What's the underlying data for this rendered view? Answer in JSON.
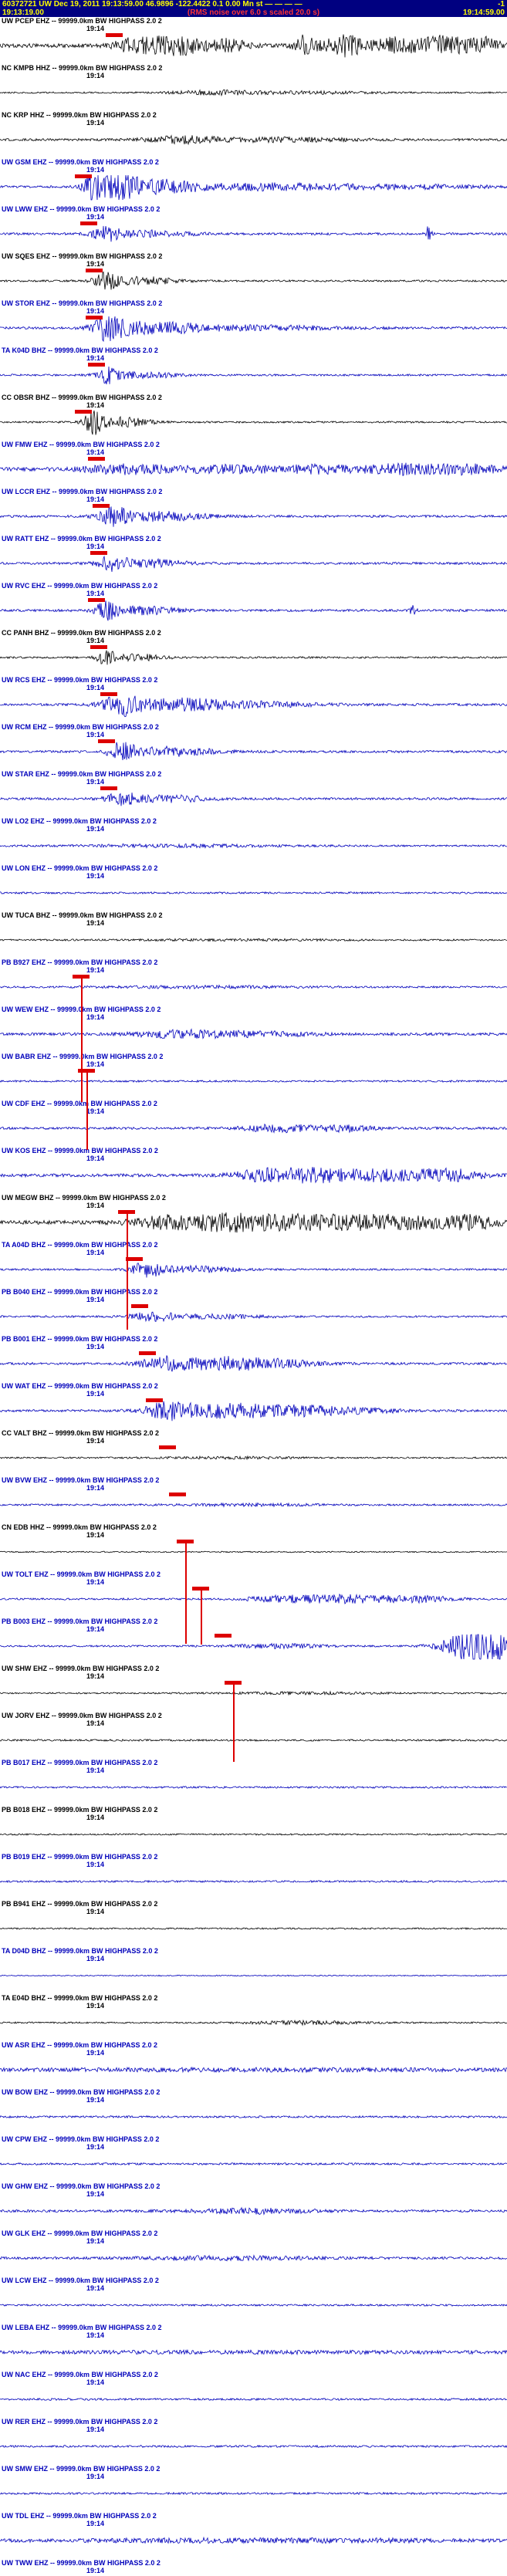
{
  "header": {
    "event_line": "60372721 UW Dec 19, 2011 19:13:59.00   46.9896 -122.4422   0.1 0.00 Mn st — — — —",
    "flag": "-1",
    "window_start": "19:13:19.00",
    "scale_note": "(RMS noise over 6.0 s scaled 20.0 s)",
    "window_end": "19:14:59.00"
  },
  "tick_label": "19:14",
  "palette": {
    "black": "#000000",
    "blue": "#0000bb",
    "red": "#dd0000",
    "header_bg": "#000080",
    "header_fg": "#ffff00"
  },
  "traces": [
    {
      "label": "UW PCEP EHZ -- 99999.0km BW HIGHPASS  2.0 2",
      "color": "black",
      "base": 2.5,
      "bursts": [
        [
          0.27,
          0.03,
          9
        ],
        [
          0.35,
          0.04,
          11
        ],
        [
          0.45,
          0.03,
          7
        ],
        [
          0.6,
          0.015,
          12
        ],
        [
          0.68,
          0.03,
          13
        ],
        [
          0.78,
          0.03,
          9
        ],
        [
          0.88,
          0.04,
          12
        ],
        [
          0.96,
          0.02,
          8
        ]
      ],
      "pick": 0.225
    },
    {
      "label": "NC KMPB HHZ -- 99999.0km BW HIGHPASS  2.0 2",
      "color": "black",
      "base": 1.0,
      "bursts": [
        [
          0.42,
          0.06,
          2.5
        ],
        [
          0.6,
          0.1,
          1.5
        ]
      ],
      "pick": null
    },
    {
      "label": "NC KRP HHZ -- 99999.0km BW HIGHPASS  2.0 2",
      "color": "black",
      "base": 1.5,
      "bursts": [
        [
          0.36,
          0.05,
          4
        ],
        [
          0.55,
          0.1,
          2.5
        ]
      ],
      "pick": null
    },
    {
      "label": "UW GSM EHZ -- 99999.0km BW HIGHPASS  2.0 2",
      "color": "blue",
      "base": 1.5,
      "bursts": [
        [
          0.185,
          0.012,
          22
        ],
        [
          0.23,
          0.03,
          16
        ],
        [
          0.32,
          0.05,
          8
        ],
        [
          0.5,
          0.1,
          3.5
        ],
        [
          0.75,
          0.15,
          2.5
        ]
      ],
      "pick": 0.165
    },
    {
      "label": "UW LWW EHZ -- 99999.0km BW HIGHPASS  2.0 2",
      "color": "blue",
      "base": 1.5,
      "bursts": [
        [
          0.21,
          0.02,
          8
        ],
        [
          0.3,
          0.06,
          4
        ],
        [
          0.845,
          0.004,
          9
        ]
      ],
      "pick": 0.175
    },
    {
      "label": "UW SQES EHZ -- 99999.0km BW HIGHPASS  2.0 2",
      "color": "black",
      "base": 1.2,
      "bursts": [
        [
          0.21,
          0.015,
          12
        ],
        [
          0.28,
          0.05,
          5
        ]
      ],
      "pick": 0.185
    },
    {
      "label": "UW STOR EHZ -- 99999.0km BW HIGHPASS  2.0 2",
      "color": "blue",
      "base": 1.5,
      "bursts": [
        [
          0.215,
          0.02,
          17
        ],
        [
          0.3,
          0.06,
          8
        ],
        [
          0.5,
          0.12,
          3
        ]
      ],
      "pick": 0.185
    },
    {
      "label": "TA K04D BHZ -- 99999.0km BW HIGHPASS  2.0 2",
      "color": "blue",
      "base": 1.2,
      "bursts": [
        [
          0.215,
          0.015,
          10
        ],
        [
          0.28,
          0.05,
          4
        ]
      ],
      "pick": 0.19
    },
    {
      "label": "CC OBSR BHZ -- 99999.0km BW HIGHPASS  2.0 2",
      "color": "black",
      "base": 1.2,
      "bursts": [
        [
          0.185,
          0.012,
          15
        ],
        [
          0.24,
          0.04,
          6
        ]
      ],
      "pick": 0.165
    },
    {
      "label": "UW FMW EHZ -- 99999.0km BW HIGHPASS  2.0 2",
      "color": "blue",
      "base": 2.5,
      "bursts": [
        [
          0.25,
          0.06,
          5
        ],
        [
          0.45,
          0.08,
          4
        ],
        [
          0.63,
          0.05,
          4
        ],
        [
          0.8,
          0.06,
          6
        ],
        [
          0.93,
          0.04,
          5
        ]
      ],
      "pick": 0.19
    },
    {
      "label": "UW LCCR EHZ -- 99999.0km BW HIGHPASS  2.0 2",
      "color": "blue",
      "base": 1.5,
      "bursts": [
        [
          0.225,
          0.02,
          11
        ],
        [
          0.32,
          0.06,
          6
        ]
      ],
      "pick": 0.2
    },
    {
      "label": "UW RATT EHZ -- 99999.0km BW HIGHPASS  2.0 2",
      "color": "blue",
      "base": 1.5,
      "bursts": [
        [
          0.22,
          0.02,
          9
        ],
        [
          0.3,
          0.05,
          5
        ]
      ],
      "pick": 0.195
    },
    {
      "label": "UW RVC EHZ -- 99999.0km BW HIGHPASS  2.0 2",
      "color": "blue",
      "base": 1.5,
      "bursts": [
        [
          0.21,
          0.015,
          11
        ],
        [
          0.28,
          0.05,
          5
        ],
        [
          0.815,
          0.004,
          8
        ]
      ],
      "pick": 0.19
    },
    {
      "label": "CC PANH BHZ -- 99999.0km BW HIGHPASS  2.0 2",
      "color": "black",
      "base": 1.2,
      "bursts": [
        [
          0.21,
          0.012,
          10
        ],
        [
          0.27,
          0.04,
          4
        ]
      ],
      "pick": 0.195
    },
    {
      "label": "UW RCS EHZ -- 99999.0km BW HIGHPASS  2.0 2",
      "color": "blue",
      "base": 1.5,
      "bursts": [
        [
          0.24,
          0.025,
          13
        ],
        [
          0.35,
          0.07,
          7
        ],
        [
          0.5,
          0.1,
          3
        ]
      ],
      "pick": 0.215
    },
    {
      "label": "UW RCM EHZ -- 99999.0km BW HIGHPASS  2.0 2",
      "color": "blue",
      "base": 1.5,
      "bursts": [
        [
          0.24,
          0.02,
          11
        ],
        [
          0.34,
          0.06,
          6
        ]
      ],
      "pick": 0.21
    },
    {
      "label": "UW STAR EHZ -- 99999.0km BW HIGHPASS  2.0 2",
      "color": "blue",
      "base": 1.5,
      "bursts": [
        [
          0.24,
          0.02,
          8
        ],
        [
          0.33,
          0.06,
          4
        ]
      ],
      "pick": 0.215
    },
    {
      "label": "UW LO2 EHZ -- 99999.0km BW HIGHPASS  2.0 2",
      "color": "blue",
      "base": 1.2,
      "bursts": [
        [
          0.35,
          0.15,
          1.5
        ]
      ],
      "pick": null
    },
    {
      "label": "UW LON EHZ -- 99999.0km BW HIGHPASS  2.0 2",
      "color": "blue",
      "base": 1.2,
      "bursts": [],
      "pick": null
    },
    {
      "label": "UW TUCA BHZ -- 99999.0km BW HIGHPASS  2.0 2",
      "color": "black",
      "base": 1.0,
      "bursts": [
        [
          0.5,
          0.2,
          0.8
        ]
      ],
      "pick": null
    },
    {
      "label": "PB B927 EHZ -- 99999.0km BW HIGHPASS  2.0 2",
      "color": "blue",
      "base": 1.2,
      "bursts": [
        [
          0.4,
          0.15,
          1.2
        ]
      ],
      "pick": 0.16,
      "line_h": 160
    },
    {
      "label": "UW WEW EHZ -- 99999.0km BW HIGHPASS  2.0 2",
      "color": "blue",
      "base": 1.8,
      "bursts": [
        [
          0.35,
          0.06,
          4
        ],
        [
          0.5,
          0.08,
          3
        ]
      ],
      "pick": null
    },
    {
      "label": "UW BABR EHZ -- 99999.0km BW HIGHPASS  2.0 2",
      "color": "blue",
      "base": 1.2,
      "bursts": [],
      "pick": 0.17,
      "line_h": 100
    },
    {
      "label": "UW CDF EHZ -- 99999.0km BW HIGHPASS  2.0 2",
      "color": "blue",
      "base": 1.5,
      "bursts": [
        [
          0.55,
          0.05,
          4.5
        ],
        [
          0.68,
          0.04,
          4
        ]
      ],
      "pick": null
    },
    {
      "label": "UW KOS EHZ -- 99999.0km BW HIGHPASS  2.0 2",
      "color": "blue",
      "base": 2.0,
      "bursts": [
        [
          0.52,
          0.04,
          7
        ],
        [
          0.62,
          0.05,
          9
        ],
        [
          0.75,
          0.05,
          7
        ],
        [
          0.88,
          0.05,
          8
        ]
      ],
      "pick": null
    },
    {
      "label": "UW MEGW BHZ -- 99999.0km BW HIGHPASS  2.0 2",
      "color": "black",
      "base": 2.5,
      "bursts": [
        [
          0.33,
          0.05,
          7
        ],
        [
          0.45,
          0.06,
          9
        ],
        [
          0.6,
          0.08,
          8
        ],
        [
          0.78,
          0.08,
          8
        ],
        [
          0.93,
          0.04,
          7
        ]
      ],
      "pick": 0.25,
      "line_h": 150
    },
    {
      "label": "TA A04D BHZ -- 99999.0km BW HIGHPASS  2.0 2",
      "color": "blue",
      "base": 1.2,
      "bursts": [
        [
          0.29,
          0.02,
          10
        ],
        [
          0.38,
          0.06,
          4
        ]
      ],
      "pick": 0.265
    },
    {
      "label": "PB B040 EHZ -- 99999.0km BW HIGHPASS  2.0 2",
      "color": "blue",
      "base": 1.2,
      "bursts": [
        [
          0.3,
          0.03,
          5
        ],
        [
          0.42,
          0.08,
          2.5
        ]
      ],
      "pick": 0.275
    },
    {
      "label": "PB B001 EHZ -- 99999.0km BW HIGHPASS  2.0 2",
      "color": "blue",
      "base": 1.5,
      "bursts": [
        [
          0.32,
          0.03,
          7
        ],
        [
          0.43,
          0.07,
          8
        ],
        [
          0.55,
          0.06,
          4
        ]
      ],
      "pick": 0.29
    },
    {
      "label": "UW WAT EHZ -- 99999.0km BW HIGHPASS  2.0 2",
      "color": "blue",
      "base": 1.5,
      "bursts": [
        [
          0.33,
          0.03,
          9
        ],
        [
          0.45,
          0.08,
          9
        ],
        [
          0.6,
          0.06,
          5
        ],
        [
          0.72,
          0.05,
          3
        ]
      ],
      "pick": 0.305
    },
    {
      "label": "CC VALT BHZ -- 99999.0km BW HIGHPASS  2.0 2",
      "color": "black",
      "base": 1.0,
      "bursts": [
        [
          0.45,
          0.1,
          1.2
        ]
      ],
      "pick": 0.33
    },
    {
      "label": "UW BVW EHZ -- 99999.0km BW HIGHPASS  2.0 2",
      "color": "blue",
      "base": 1.2,
      "bursts": [
        [
          0.5,
          0.1,
          1.2
        ]
      ],
      "pick": 0.35
    },
    {
      "label": "CN EDB HHZ -- 99999.0km BW HIGHPASS  2.0 2",
      "color": "black",
      "base": 0.8,
      "bursts": [],
      "pick": 0.365,
      "line_h": 130
    },
    {
      "label": "UW TOLT EHZ -- 99999.0km BW HIGHPASS  2.0 2",
      "color": "blue",
      "base": 1.2,
      "bursts": [
        [
          0.55,
          0.05,
          3
        ],
        [
          0.68,
          0.07,
          5
        ],
        [
          0.83,
          0.05,
          3.5
        ]
      ],
      "pick": 0.395,
      "line_h": 70
    },
    {
      "label": "PB B003 EHZ -- 99999.0km BW HIGHPASS  2.0 2",
      "color": "blue",
      "base": 1.2,
      "bursts": [
        [
          0.55,
          0.06,
          2.5
        ],
        [
          0.95,
          0.045,
          28
        ]
      ],
      "pick": 0.44
    },
    {
      "label": "UW SHW EHZ -- 99999.0km BW HIGHPASS  2.0 2",
      "color": "black",
      "base": 1.0,
      "bursts": [
        [
          0.6,
          0.1,
          1.2
        ]
      ],
      "pick": 0.46,
      "line_h": 100
    },
    {
      "label": "UW JORV EHZ -- 99999.0km BW HIGHPASS  2.0 2",
      "color": "black",
      "base": 1.2,
      "bursts": [],
      "pick": null
    },
    {
      "label": "PB B017 EHZ -- 99999.0km BW HIGHPASS  2.0 2",
      "color": "blue",
      "base": 1.2,
      "bursts": [],
      "pick": null
    },
    {
      "label": "PB B018 EHZ -- 99999.0km BW HIGHPASS  2.0 2",
      "color": "black",
      "base": 1.0,
      "bursts": [],
      "pick": null
    },
    {
      "label": "PB B019 EHZ -- 99999.0km BW HIGHPASS  2.0 2",
      "color": "blue",
      "base": 1.2,
      "bursts": [],
      "pick": null
    },
    {
      "label": "PB B941 EHZ -- 99999.0km BW HIGHPASS  2.0 2",
      "color": "black",
      "base": 1.0,
      "bursts": [],
      "pick": null
    },
    {
      "label": "TA D04D BHZ -- 99999.0km BW HIGHPASS  2.0 2",
      "color": "blue",
      "base": 0.7,
      "bursts": [],
      "pick": null
    },
    {
      "label": "TA E04D BHZ -- 99999.0km BW HIGHPASS  2.0 2",
      "color": "black",
      "base": 1.0,
      "bursts": [
        [
          0.6,
          0.08,
          2
        ]
      ],
      "pick": null
    },
    {
      "label": "UW ASR EHZ -- 99999.0km BW HIGHPASS  2.0 2",
      "color": "blue",
      "base": 2.2,
      "bursts": [
        [
          0.5,
          0.3,
          1
        ]
      ],
      "pick": null
    },
    {
      "label": "UW BOW EHZ -- 99999.0km BW HIGHPASS  2.0 2",
      "color": "blue",
      "base": 1.3,
      "bursts": [],
      "pick": null
    },
    {
      "label": "UW CPW EHZ -- 99999.0km BW HIGHPASS  2.0 2",
      "color": "blue",
      "base": 1.3,
      "bursts": [],
      "pick": null
    },
    {
      "label": "UW GHW EHZ -- 99999.0km BW HIGHPASS  2.0 2",
      "color": "blue",
      "base": 1.6,
      "bursts": [
        [
          0.5,
          0.08,
          3
        ]
      ],
      "pick": null
    },
    {
      "label": "UW GLK EHZ -- 99999.0km BW HIGHPASS  2.0 2",
      "color": "blue",
      "base": 1.6,
      "bursts": [
        [
          0.45,
          0.12,
          2
        ]
      ],
      "pick": null
    },
    {
      "label": "UW LCW EHZ -- 99999.0km BW HIGHPASS  2.0 2",
      "color": "blue",
      "base": 1.2,
      "bursts": [],
      "pick": null
    },
    {
      "label": "UW LEBA EHZ -- 99999.0km BW HIGHPASS  2.0 2",
      "color": "blue",
      "base": 2.0,
      "bursts": [
        [
          0.5,
          0.3,
          0.8
        ]
      ],
      "pick": null
    },
    {
      "label": "UW NAC EHZ -- 99999.0km BW HIGHPASS  2.0 2",
      "color": "blue",
      "base": 1.3,
      "bursts": [],
      "pick": null
    },
    {
      "label": "UW RER EHZ -- 99999.0km BW HIGHPASS  2.0 2",
      "color": "blue",
      "base": 1.3,
      "bursts": [],
      "pick": null
    },
    {
      "label": "UW SMW EHZ -- 99999.0km BW HIGHPASS  2.0 2",
      "color": "blue",
      "base": 1.3,
      "bursts": [],
      "pick": null
    },
    {
      "label": "UW TDL EHZ -- 99999.0km BW HIGHPASS  2.0 2",
      "color": "blue",
      "base": 2.2,
      "bursts": [
        [
          0.4,
          0.15,
          1.5
        ],
        [
          0.7,
          0.1,
          1.5
        ]
      ],
      "pick": null
    },
    {
      "label": "UW TWW EHZ -- 99999.0km BW HIGHPASS  2.0 2",
      "color": "blue",
      "base": 1.5,
      "bursts": [],
      "pick": null
    }
  ]
}
